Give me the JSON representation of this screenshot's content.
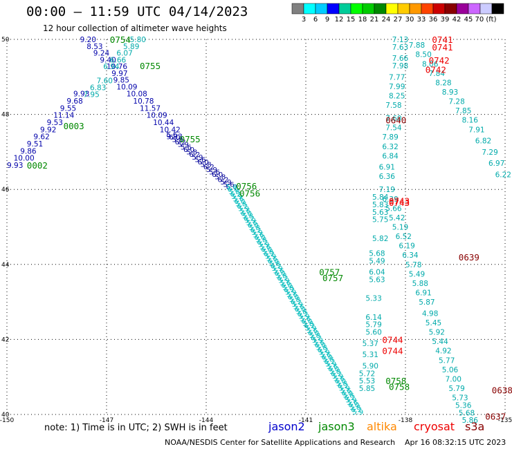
{
  "header": {
    "title": "00:00 – 11:59 UTC 04/14/2023",
    "subtitle": "12 hour collection of altimeter wave heights"
  },
  "footer": {
    "note": "note: 1) Time is in UTC; 2) SWH is in feet",
    "credit": "NOAA/NESDIS Center for Satellite Applications and Research",
    "stamp": "Apr 16 08:32:15 UTC 2023"
  },
  "satellites": [
    {
      "name": "jason2",
      "color": "#0000cc"
    },
    {
      "name": "jason3",
      "color": "#008800"
    },
    {
      "name": "altika",
      "color": "#ff8800"
    },
    {
      "name": "cryosat",
      "color": "#ee0000"
    },
    {
      "name": "s3a",
      "color": "#880000"
    }
  ],
  "colorbar": {
    "colors": [
      "#808080",
      "#00ffff",
      "#00ccff",
      "#0000ff",
      "#00cc99",
      "#00ff00",
      "#00cc00",
      "#008800",
      "#ffff00",
      "#ffcc00",
      "#ff9900",
      "#ff4400",
      "#cc0000",
      "#880000",
      "#990099",
      "#cc66ff",
      "#ccccff",
      "#000000"
    ],
    "ticks": [
      "3",
      "6",
      "9",
      "12",
      "15",
      "18",
      "21",
      "24",
      "27",
      "30",
      "33",
      "36",
      "39",
      "42",
      "45",
      "70 (ft)"
    ]
  },
  "chart_data": {
    "type": "scatter",
    "xlim": [
      -150,
      -135
    ],
    "ylim": [
      40,
      50
    ],
    "xticks": [
      "-150",
      "-147",
      "-144",
      "-141",
      "-138",
      "-135"
    ],
    "yticks": [
      "40",
      "42",
      "44",
      "46",
      "48",
      "50"
    ],
    "grid": true,
    "groups": [
      {
        "satellite": "jason2",
        "color": "#0000aa",
        "points": [
          {
            "x": -147.8,
            "y": 50.0,
            "v": "9.20"
          },
          {
            "x": -147.6,
            "y": 49.82,
            "v": "8.53"
          },
          {
            "x": -147.4,
            "y": 49.64,
            "v": "9.24"
          },
          {
            "x": -147.2,
            "y": 49.46,
            "v": "9.40"
          },
          {
            "x": -147.0,
            "y": 49.28,
            "v": "10.76"
          },
          {
            "x": -146.85,
            "y": 49.1,
            "v": "9.97"
          },
          {
            "x": -146.8,
            "y": 48.92,
            "v": "9.85"
          },
          {
            "x": -146.7,
            "y": 48.74,
            "v": "10.09"
          },
          {
            "x": -146.4,
            "y": 48.55,
            "v": "10.08"
          },
          {
            "x": -146.2,
            "y": 48.36,
            "v": "10.78"
          },
          {
            "x": -146.0,
            "y": 48.17,
            "v": "11.57"
          },
          {
            "x": -145.8,
            "y": 47.98,
            "v": "10.09"
          },
          {
            "x": -145.6,
            "y": 47.79,
            "v": "10.44"
          },
          {
            "x": -145.4,
            "y": 47.6,
            "v": "10.42"
          },
          {
            "x": -145.2,
            "y": 47.41,
            "v": "9.93"
          },
          {
            "x": -148.0,
            "y": 48.55,
            "v": "9.93"
          },
          {
            "x": -148.2,
            "y": 48.36,
            "v": "9.68"
          },
          {
            "x": -148.4,
            "y": 48.17,
            "v": "9.55"
          },
          {
            "x": -148.6,
            "y": 47.98,
            "v": "11.14"
          },
          {
            "x": -148.8,
            "y": 47.79,
            "v": "9.53"
          },
          {
            "x": -149.0,
            "y": 47.6,
            "v": "9.92"
          },
          {
            "x": -149.2,
            "y": 47.41,
            "v": "9.62"
          },
          {
            "x": -149.4,
            "y": 47.22,
            "v": "9.51"
          },
          {
            "x": -149.6,
            "y": 47.03,
            "v": "9.86"
          },
          {
            "x": -149.8,
            "y": 46.84,
            "v": "10.00"
          },
          {
            "x": -150.0,
            "y": 46.65,
            "v": "9.93"
          }
        ]
      },
      {
        "satellite": "jason3",
        "color": "#00aaaa",
        "points": [
          {
            "x": -146.3,
            "y": 50.0,
            "v": "5.80"
          },
          {
            "x": -146.5,
            "y": 49.82,
            "v": "5.89"
          },
          {
            "x": -146.7,
            "y": 49.64,
            "v": "6.07"
          },
          {
            "x": -146.9,
            "y": 49.46,
            "v": "6.66"
          },
          {
            "x": -147.1,
            "y": 49.28,
            "v": "6.94"
          },
          {
            "x": -147.3,
            "y": 48.9,
            "v": "7.60"
          },
          {
            "x": -147.5,
            "y": 48.72,
            "v": "6.83"
          },
          {
            "x": -147.7,
            "y": 48.54,
            "v": "7.95"
          },
          {
            "x": -137.9,
            "y": 49.85,
            "v": "7.88"
          },
          {
            "x": -137.7,
            "y": 49.6,
            "v": "8.50"
          },
          {
            "x": -137.5,
            "y": 49.35,
            "v": "8.06"
          },
          {
            "x": -137.3,
            "y": 49.1,
            "v": "7.84"
          },
          {
            "x": -137.1,
            "y": 48.85,
            "v": "8.28"
          },
          {
            "x": -136.9,
            "y": 48.6,
            "v": "8.93"
          },
          {
            "x": -136.7,
            "y": 48.35,
            "v": "7.28"
          },
          {
            "x": -136.5,
            "y": 48.1,
            "v": "7.85"
          },
          {
            "x": -136.3,
            "y": 47.85,
            "v": "8.16"
          },
          {
            "x": -136.1,
            "y": 47.6,
            "v": "7.91"
          },
          {
            "x": -135.9,
            "y": 47.3,
            "v": "6.82"
          },
          {
            "x": -135.7,
            "y": 47.0,
            "v": "7.29"
          },
          {
            "x": -135.5,
            "y": 46.7,
            "v": "6.97"
          },
          {
            "x": -135.3,
            "y": 46.4,
            "v": "6.22"
          },
          {
            "x": -138.4,
            "y": 50.0,
            "v": "7.13"
          },
          {
            "x": -138.4,
            "y": 49.8,
            "v": "7.63"
          },
          {
            "x": -138.4,
            "y": 49.5,
            "v": "7.66"
          },
          {
            "x": -138.4,
            "y": 49.3,
            "v": "7.98"
          },
          {
            "x": -138.5,
            "y": 49.0,
            "v": "7.77"
          },
          {
            "x": -138.5,
            "y": 48.75,
            "v": "7.99"
          },
          {
            "x": -138.5,
            "y": 48.5,
            "v": "8.25"
          },
          {
            "x": -138.6,
            "y": 48.25,
            "v": "7.58"
          },
          {
            "x": -138.6,
            "y": 47.9,
            "v": "7.60"
          },
          {
            "x": -138.6,
            "y": 47.65,
            "v": "7.54"
          },
          {
            "x": -138.7,
            "y": 47.4,
            "v": "7.89"
          },
          {
            "x": -138.7,
            "y": 47.15,
            "v": "6.32"
          },
          {
            "x": -138.7,
            "y": 46.9,
            "v": "6.84"
          },
          {
            "x": -138.8,
            "y": 46.6,
            "v": "6.91"
          },
          {
            "x": -138.8,
            "y": 46.35,
            "v": "6.36"
          },
          {
            "x": -138.8,
            "y": 46.0,
            "v": "7.19"
          },
          {
            "x": -138.7,
            "y": 45.75,
            "v": "6.39"
          },
          {
            "x": -138.6,
            "y": 45.5,
            "v": "5.66"
          },
          {
            "x": -138.5,
            "y": 45.25,
            "v": "5.42"
          },
          {
            "x": -138.4,
            "y": 45.0,
            "v": "5.19"
          },
          {
            "x": -138.3,
            "y": 44.75,
            "v": "6.52"
          },
          {
            "x": -138.2,
            "y": 44.5,
            "v": "6.19"
          },
          {
            "x": -138.1,
            "y": 44.25,
            "v": "6.34"
          },
          {
            "x": -138.0,
            "y": 44.0,
            "v": "5.78"
          },
          {
            "x": -137.9,
            "y": 43.75,
            "v": "5.49"
          },
          {
            "x": -137.8,
            "y": 43.5,
            "v": "5.88"
          },
          {
            "x": -137.7,
            "y": 43.25,
            "v": "6.91"
          },
          {
            "x": -137.6,
            "y": 43.0,
            "v": "5.87"
          },
          {
            "x": -137.5,
            "y": 42.7,
            "v": "4.98"
          },
          {
            "x": -137.4,
            "y": 42.45,
            "v": "5.45"
          },
          {
            "x": -137.3,
            "y": 42.2,
            "v": "5.92"
          },
          {
            "x": -137.2,
            "y": 41.95,
            "v": "5.44"
          },
          {
            "x": -137.1,
            "y": 41.7,
            "v": "4.92"
          },
          {
            "x": -137.0,
            "y": 41.45,
            "v": "5.77"
          },
          {
            "x": -136.9,
            "y": 41.2,
            "v": "5.06"
          },
          {
            "x": -136.8,
            "y": 40.95,
            "v": "7.00"
          },
          {
            "x": -136.7,
            "y": 40.7,
            "v": "5.79"
          },
          {
            "x": -136.6,
            "y": 40.45,
            "v": "5.73"
          },
          {
            "x": -136.5,
            "y": 40.25,
            "v": "5.36"
          },
          {
            "x": -136.4,
            "y": 40.05,
            "v": "5.68"
          },
          {
            "x": -136.3,
            "y": 39.85,
            "v": "5.86"
          },
          {
            "x": -139.0,
            "y": 45.8,
            "v": "5.84"
          },
          {
            "x": -139.0,
            "y": 45.6,
            "v": "5.83"
          },
          {
            "x": -139.0,
            "y": 45.4,
            "v": "5.63"
          },
          {
            "x": -139.0,
            "y": 45.2,
            "v": "5.75"
          },
          {
            "x": -139.0,
            "y": 44.7,
            "v": "5.82"
          },
          {
            "x": -139.1,
            "y": 44.3,
            "v": "5.68"
          },
          {
            "x": -139.1,
            "y": 44.1,
            "v": "5.49"
          },
          {
            "x": -139.1,
            "y": 43.8,
            "v": "6.04"
          },
          {
            "x": -139.1,
            "y": 43.6,
            "v": "5.63"
          },
          {
            "x": -139.2,
            "y": 43.1,
            "v": "5.33"
          },
          {
            "x": -139.2,
            "y": 42.6,
            "v": "6.14"
          },
          {
            "x": -139.2,
            "y": 42.4,
            "v": "5.79"
          },
          {
            "x": -139.2,
            "y": 42.2,
            "v": "5.60"
          },
          {
            "x": -139.3,
            "y": 41.9,
            "v": "5.37"
          },
          {
            "x": -139.3,
            "y": 41.6,
            "v": "5.31"
          },
          {
            "x": -139.3,
            "y": 41.3,
            "v": "5.90"
          },
          {
            "x": -139.4,
            "y": 41.1,
            "v": "5.72"
          },
          {
            "x": -139.4,
            "y": 40.9,
            "v": "5.53"
          },
          {
            "x": -139.4,
            "y": 40.7,
            "v": "5.85"
          }
        ]
      }
    ],
    "pass_labels": [
      {
        "x": -146.9,
        "y": 50.0,
        "text": "0754",
        "color": "#008800"
      },
      {
        "x": -146.0,
        "y": 49.3,
        "text": "0755",
        "color": "#008800"
      },
      {
        "x": -148.3,
        "y": 47.7,
        "text": "0003",
        "color": "#008800"
      },
      {
        "x": -149.4,
        "y": 46.65,
        "text": "0002",
        "color": "#008800"
      },
      {
        "x": -144.8,
        "y": 47.35,
        "text": "0755",
        "color": "#008800"
      },
      {
        "x": -143.1,
        "y": 46.1,
        "text": "0756",
        "color": "#008800"
      },
      {
        "x": -143.0,
        "y": 45.9,
        "text": "0756",
        "color": "#008800"
      },
      {
        "x": -140.6,
        "y": 43.8,
        "text": "0757",
        "color": "#008800"
      },
      {
        "x": -140.5,
        "y": 43.65,
        "text": "0757",
        "color": "#008800"
      },
      {
        "x": -138.6,
        "y": 40.9,
        "text": "0758",
        "color": "#008800"
      },
      {
        "x": -138.5,
        "y": 40.75,
        "text": "0758",
        "color": "#008800"
      },
      {
        "x": -137.2,
        "y": 50.0,
        "text": "0741",
        "color": "#ee0000"
      },
      {
        "x": -137.2,
        "y": 49.8,
        "text": "0741",
        "color": "#ee0000"
      },
      {
        "x": -137.3,
        "y": 49.45,
        "text": "0742",
        "color": "#ee0000"
      },
      {
        "x": -137.4,
        "y": 49.2,
        "text": "0742",
        "color": "#ee0000"
      },
      {
        "x": -138.6,
        "y": 47.85,
        "text": "0640",
        "color": "#880000"
      },
      {
        "x": -138.5,
        "y": 45.7,
        "text": "0743",
        "color": "#ee0000"
      },
      {
        "x": -138.5,
        "y": 45.65,
        "text": "0743",
        "color": "#ee0000"
      },
      {
        "x": -136.4,
        "y": 44.2,
        "text": "0639",
        "color": "#880000"
      },
      {
        "x": -138.7,
        "y": 42.0,
        "text": "0744",
        "color": "#ee0000"
      },
      {
        "x": -138.7,
        "y": 41.7,
        "text": "0744",
        "color": "#ee0000"
      },
      {
        "x": -135.4,
        "y": 40.65,
        "text": "0638",
        "color": "#880000"
      },
      {
        "x": -135.6,
        "y": 39.95,
        "text": "0637",
        "color": "#880000"
      }
    ],
    "dense_tracks": [
      {
        "color": "#000099",
        "from": [
          -145.2,
          47.4
        ],
        "to": [
          -143.4,
          46.0
        ],
        "count": 22
      },
      {
        "color": "#00bbbb",
        "from": [
          -143.4,
          46.0
        ],
        "to": [
          -139.6,
          40.0
        ],
        "count": 95
      }
    ]
  }
}
